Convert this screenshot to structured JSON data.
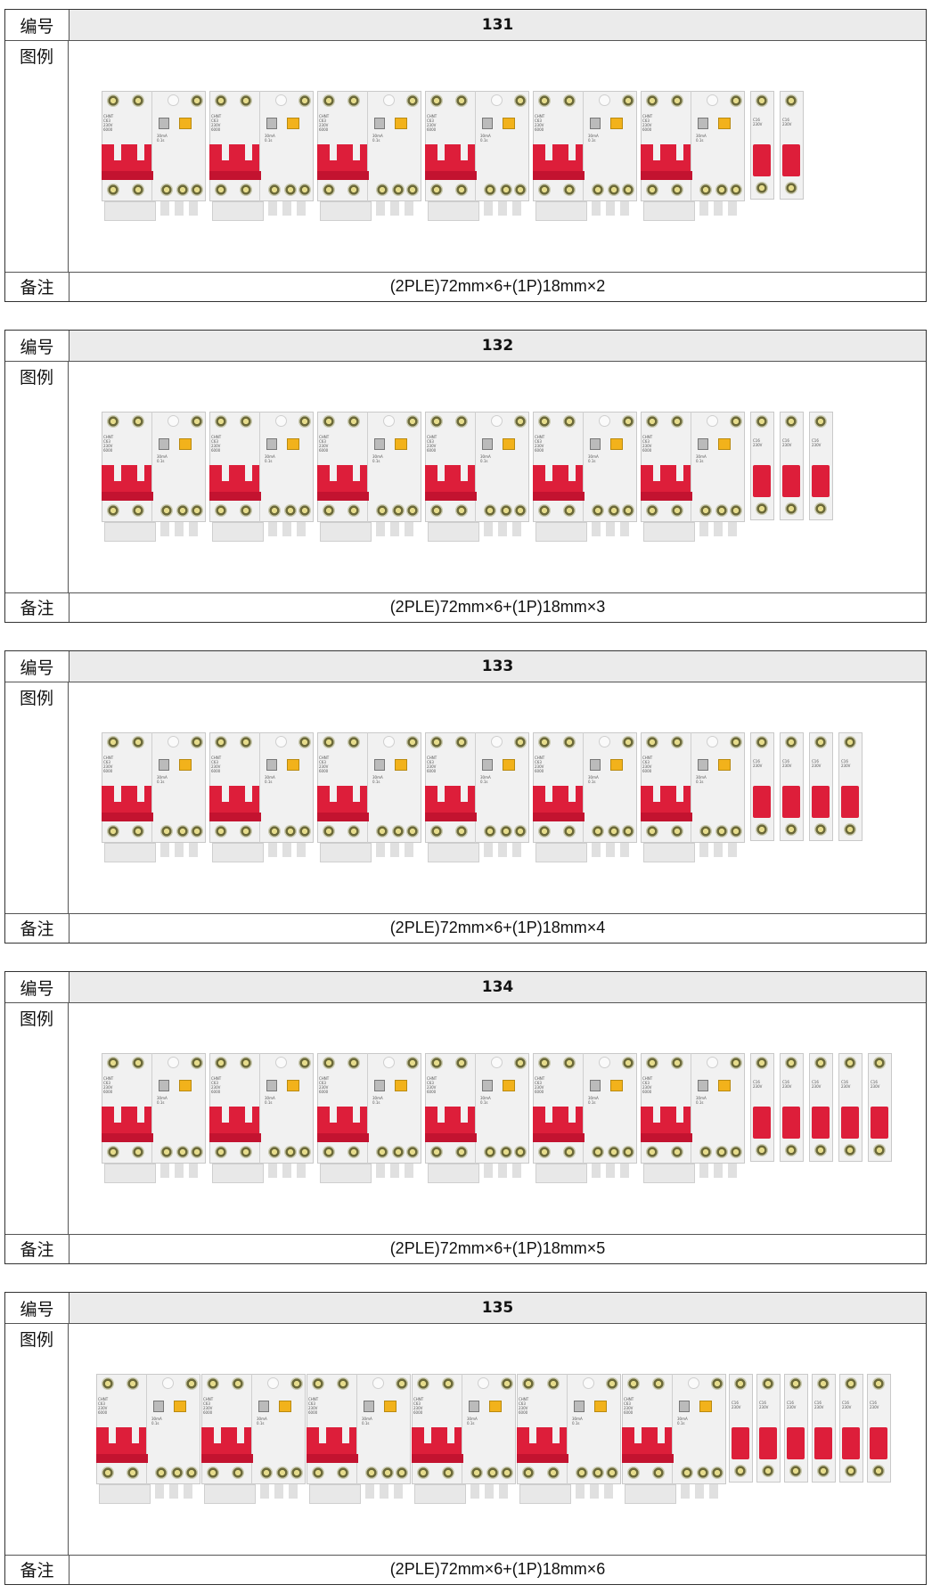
{
  "labels": {
    "number": "编号",
    "figure": "图例",
    "note": "备注"
  },
  "tables": [
    {
      "id": "131",
      "note": "(2PLE)72mm×6+(1P)18mm×2",
      "rcbo_count": 6,
      "mcb_count": 2
    },
    {
      "id": "132",
      "note": "(2PLE)72mm×6+(1P)18mm×3",
      "rcbo_count": 6,
      "mcb_count": 3
    },
    {
      "id": "133",
      "note": "(2PLE)72mm×6+(1P)18mm×4",
      "rcbo_count": 6,
      "mcb_count": 4
    },
    {
      "id": "134",
      "note": "(2PLE)72mm×6+(1P)18mm×5",
      "rcbo_count": 6,
      "mcb_count": 5
    },
    {
      "id": "135",
      "note": "(2PLE)72mm×6+(1P)18mm×6",
      "rcbo_count": 6,
      "mcb_count": 6
    }
  ],
  "colors": {
    "handle_red": "#dd1e3a",
    "test_button": "#f2b21b",
    "header_bg": "#ebebeb"
  }
}
